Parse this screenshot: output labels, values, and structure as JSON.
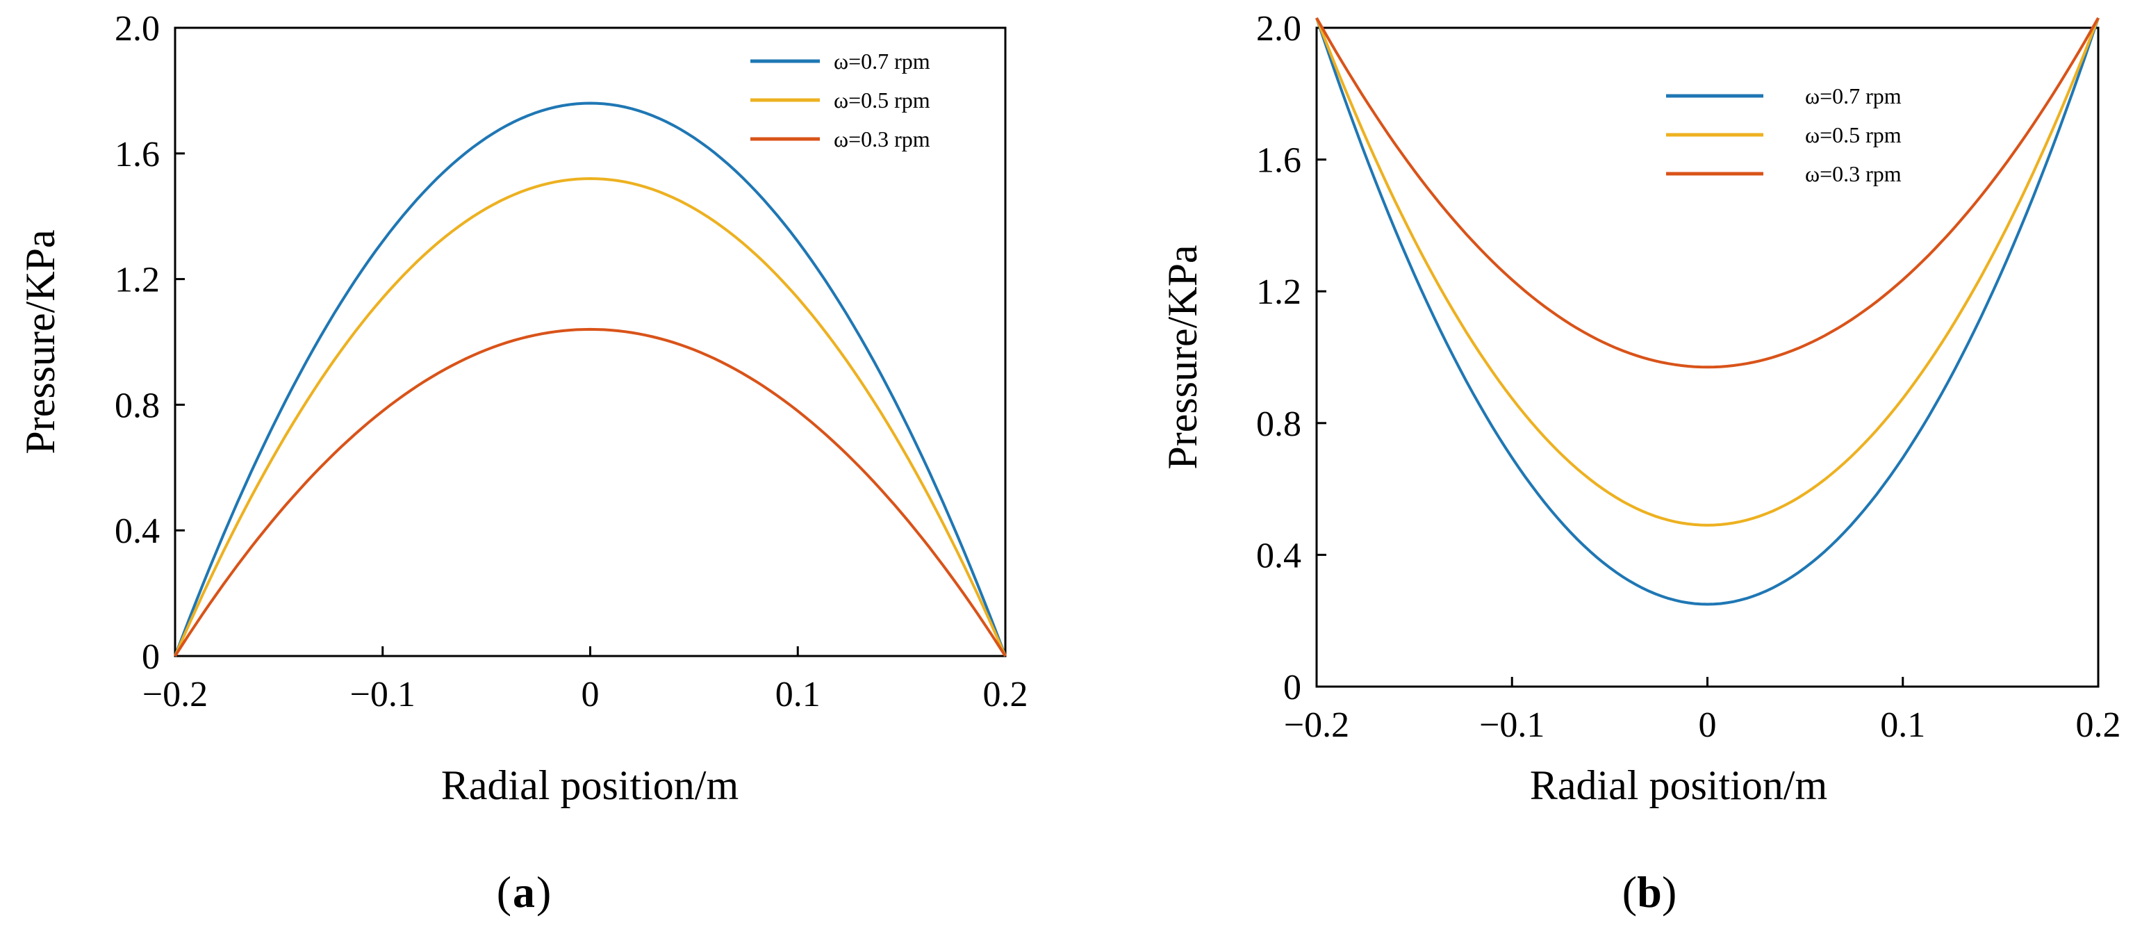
{
  "colors": {
    "series": [
      "#1f77b4",
      "#EDB120",
      "#D95319"
    ],
    "axis": "#000000"
  },
  "chart_data": [
    {
      "type": "line",
      "panel": "a",
      "panel_label": "a",
      "title": "",
      "xlabel": "Radial position/m",
      "ylabel": "Pressure/KPa",
      "xlim": [
        -0.2,
        0.2
      ],
      "ylim": [
        0,
        2.0
      ],
      "xticks": [
        -0.2,
        -0.1,
        0,
        0.1,
        0.2
      ],
      "xtick_labels": [
        "−0.2",
        "−0.1",
        "0",
        "0.1",
        "0.2"
      ],
      "yticks": [
        0,
        0.4,
        0.8,
        1.2,
        1.6,
        2.0
      ],
      "ytick_labels": [
        "0",
        "0.4",
        "0.8",
        "1.2",
        "1.6",
        "2.0"
      ],
      "legend_position": "top-right",
      "series": [
        {
          "name": "ω=0.7 rpm",
          "shape": "parabola",
          "center": 0,
          "peak": 1.76,
          "edge": 0
        },
        {
          "name": "ω=0.5 rpm",
          "shape": "parabola",
          "center": 0,
          "peak": 1.52,
          "edge": 0
        },
        {
          "name": "ω=0.3 rpm",
          "shape": "parabola",
          "center": 0,
          "peak": 1.04,
          "edge": 0
        }
      ]
    },
    {
      "type": "line",
      "panel": "b",
      "panel_label": "b",
      "title": "",
      "xlabel": "Radial position/m",
      "ylabel": "Pressure/KPa",
      "xlim": [
        -0.2,
        0.2
      ],
      "ylim": [
        0,
        2.0
      ],
      "xticks": [
        -0.2,
        -0.1,
        0,
        0.1,
        0.2
      ],
      "xtick_labels": [
        "−0.2",
        "−0.1",
        "0",
        "0.1",
        "0.2"
      ],
      "yticks": [
        0,
        0.4,
        0.8,
        1.2,
        1.6,
        2.0
      ],
      "ytick_labels": [
        "0",
        "0.4",
        "0.8",
        "1.2",
        "1.6",
        "2.0"
      ],
      "legend_position": "top-right",
      "series": [
        {
          "name": "ω=0.7 rpm",
          "shape": "parabola",
          "center": 0,
          "peak": 0.25,
          "edge": 2.03
        },
        {
          "name": "ω=0.5 rpm",
          "shape": "parabola",
          "center": 0,
          "peak": 0.49,
          "edge": 2.03
        },
        {
          "name": "ω=0.3 rpm",
          "shape": "parabola",
          "center": 0,
          "peak": 0.97,
          "edge": 2.03
        }
      ]
    }
  ]
}
